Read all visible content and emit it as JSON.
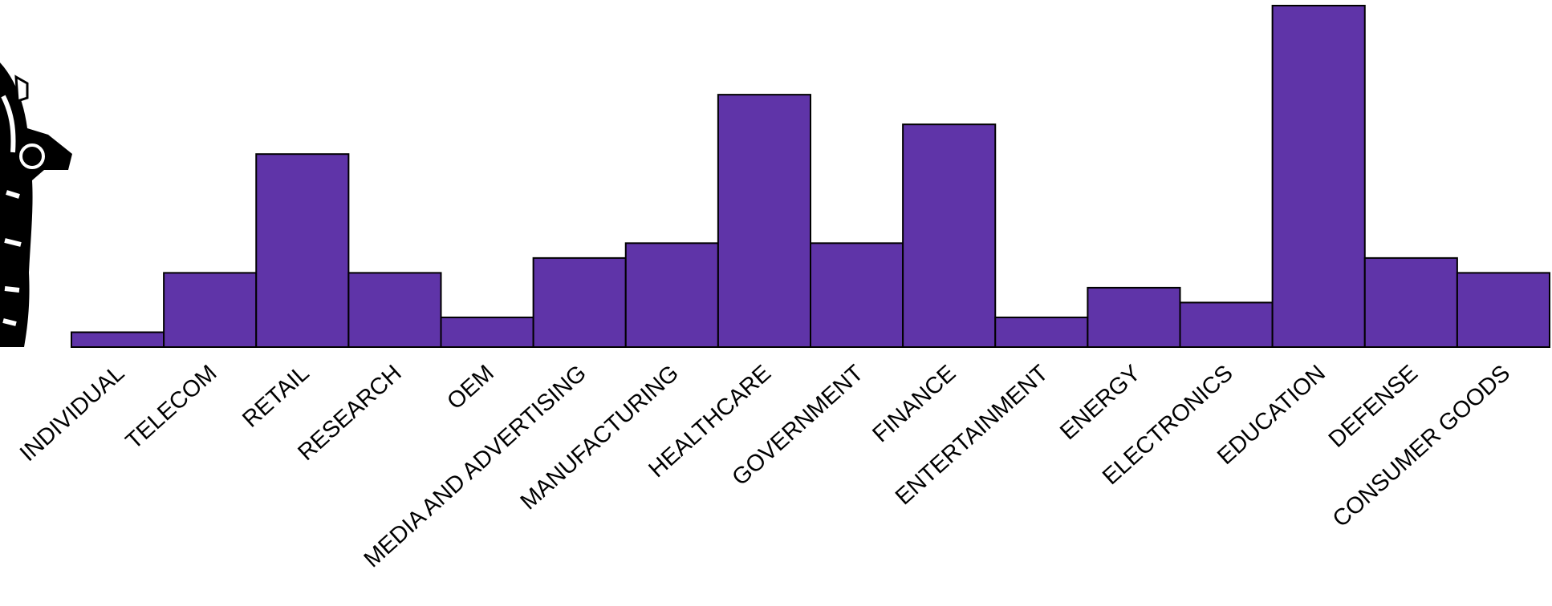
{
  "chart_data": {
    "type": "bar",
    "categories": [
      "INDIVIDUAL",
      "TELECOM",
      "RETAIL",
      "RESEARCH",
      "OEM",
      "MEDIA AND ADVERTISING",
      "MANUFACTURING",
      "HEALTHCARE",
      "GOVERNMENT",
      "FINANCE",
      "ENTERTAINMENT",
      "ENERGY",
      "ELECTRONICS",
      "EDUCATION",
      "DEFENSE",
      "CONSUMER GOODS"
    ],
    "values": [
      1,
      5,
      13,
      5,
      2,
      6,
      7,
      17,
      7,
      15,
      2,
      4,
      3,
      23,
      6,
      5
    ],
    "color": "#5f34a8"
  }
}
